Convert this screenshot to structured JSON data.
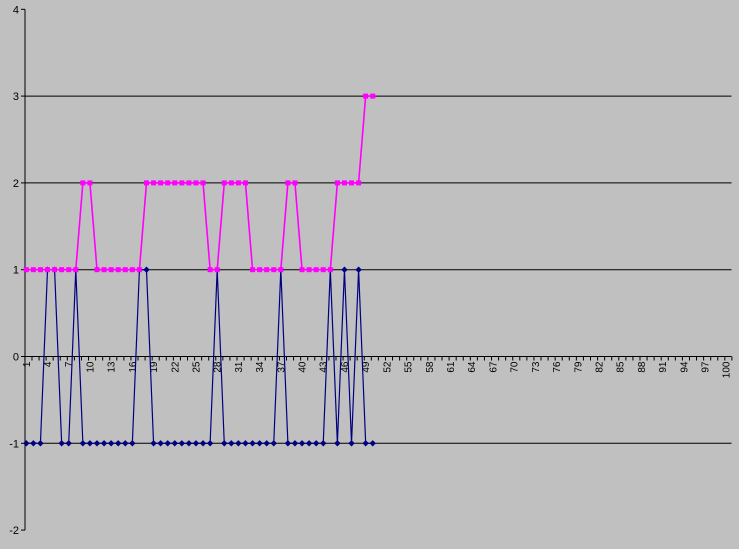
{
  "chart_data": {
    "type": "line",
    "title": "",
    "xlabel": "",
    "ylabel": "",
    "legend": "none",
    "plot_background": "#C0C0C0",
    "gridline_color": "#000000",
    "axis_color": "#000000",
    "grid_on": true,
    "x_axis": {
      "type": "category",
      "total_categories": 100,
      "tick_every": 1,
      "label_every": 3,
      "labels_rotated": true,
      "tick_labels": [
        1,
        4,
        7,
        10,
        13,
        16,
        19,
        22,
        25,
        28,
        31,
        34,
        37,
        40,
        43,
        46,
        49,
        52,
        55,
        58,
        61,
        64,
        67,
        70,
        73,
        76,
        79,
        82,
        85,
        88,
        91,
        94,
        97,
        100
      ]
    },
    "y_axis": {
      "min": -2,
      "max": 4,
      "tick_labels": [
        4,
        3,
        2,
        1,
        0,
        -1,
        -2
      ],
      "gridline_values": [
        3,
        2,
        1,
        0,
        -1
      ]
    },
    "x_start": 1,
    "series": [
      {
        "name": "blue-series",
        "color": "#000080",
        "marker": "diamond",
        "values": [
          -1,
          -1,
          -1,
          1,
          1,
          -1,
          -1,
          1,
          -1,
          -1,
          -1,
          -1,
          -1,
          -1,
          -1,
          -1,
          1,
          1,
          -1,
          -1,
          -1,
          -1,
          -1,
          -1,
          -1,
          -1,
          -1,
          1,
          -1,
          -1,
          -1,
          -1,
          -1,
          -1,
          -1,
          -1,
          1,
          -1,
          -1,
          -1,
          -1,
          -1,
          -1,
          1,
          -1,
          1,
          -1,
          1,
          -1,
          -1
        ]
      },
      {
        "name": "magenta-series",
        "color": "#FF00FF",
        "marker": "square",
        "values": [
          1,
          1,
          1,
          1,
          1,
          1,
          1,
          1,
          2,
          2,
          1,
          1,
          1,
          1,
          1,
          1,
          1,
          2,
          2,
          2,
          2,
          2,
          2,
          2,
          2,
          2,
          1,
          1,
          2,
          2,
          2,
          2,
          1,
          1,
          1,
          1,
          1,
          2,
          2,
          1,
          1,
          1,
          1,
          1,
          2,
          2,
          2,
          2,
          3,
          3
        ]
      }
    ]
  }
}
